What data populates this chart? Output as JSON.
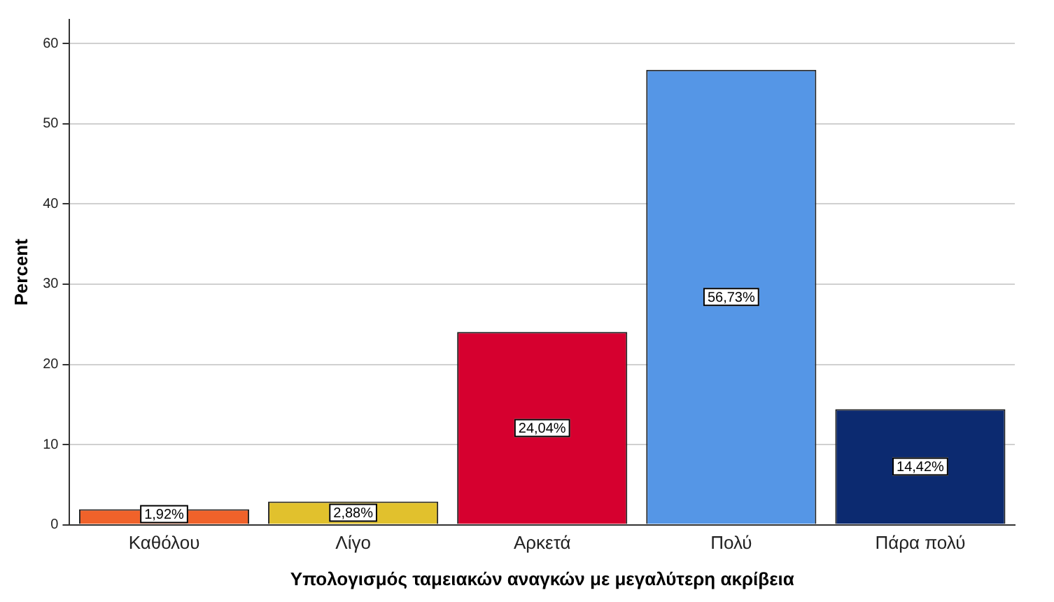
{
  "chart_data": {
    "type": "bar",
    "xlabel": "Υπολογισμός ταμειακών αναγκών με μεγαλύτερη ακρίβεια",
    "ylabel": "Percent",
    "categories": [
      "Καθόλου",
      "Λίγο",
      "Αρκετά",
      "Πολύ",
      "Πάρα πολύ"
    ],
    "values": [
      1.92,
      2.88,
      24.04,
      56.73,
      14.42
    ],
    "colors": [
      "#f0622a",
      "#e1c12d",
      "#d6002f",
      "#5596e6",
      "#0c2a70"
    ],
    "value_labels": [
      "1,92%",
      "2,88%",
      "24,04%",
      "56,73%",
      "14,42%"
    ],
    "ylim": [
      0,
      63
    ],
    "yticks": [
      0,
      10,
      20,
      30,
      40,
      50,
      60
    ],
    "grid": "y",
    "legend": false
  }
}
